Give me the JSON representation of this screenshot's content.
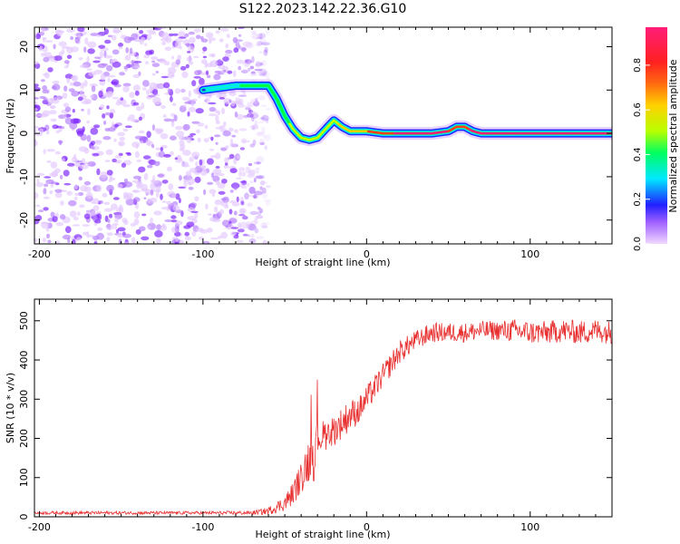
{
  "title": "S122.2023.142.22.36.G10",
  "colors": {
    "snr_line": "#e83030",
    "spectro_noise": "#7a1cff",
    "colormap": [
      "#f0d8ff",
      "#7a1cff",
      "#1a2bff",
      "#00e8ff",
      "#00ff40",
      "#c8ff00",
      "#ffd000",
      "#ff4020",
      "#ff1e78"
    ]
  },
  "chart_data": [
    {
      "type": "heatmap",
      "title": "S122.2023.142.22.36.G10",
      "xlabel": "Height of straight line (km)",
      "ylabel": "Frequency (Hz)",
      "xlim": [
        -203,
        150
      ],
      "ylim": [
        -25.5,
        24.5
      ],
      "xticks": [
        -200,
        -100,
        0,
        100
      ],
      "yticks": [
        -20,
        -10,
        0,
        10,
        20
      ],
      "colorbar": {
        "label": "Normalized spectral amplitude",
        "range": [
          0.0,
          0.97
        ],
        "ticks": [
          0.0,
          0.2,
          0.4,
          0.6,
          0.8
        ]
      },
      "noise_region_x": [
        -203,
        -60
      ],
      "ridge": {
        "x": [
          -100,
          -90,
          -80,
          -70,
          -60,
          -55,
          -50,
          -45,
          -40,
          -35,
          -30,
          -25,
          -20,
          -15,
          -10,
          -5,
          0,
          10,
          20,
          30,
          40,
          50,
          55,
          60,
          65,
          70,
          80,
          90,
          100,
          120,
          150
        ],
        "freq": [
          10,
          10.5,
          11,
          11,
          11,
          8,
          4,
          1,
          -1,
          -1.5,
          -1,
          1,
          3,
          1.5,
          0.5,
          0.5,
          0.5,
          0,
          0,
          0,
          0,
          0.5,
          1.5,
          1.5,
          0.5,
          0,
          0,
          0,
          0,
          0,
          0
        ],
        "amplitude": [
          0.25,
          0.3,
          0.35,
          0.45,
          0.5,
          0.4,
          0.45,
          0.55,
          0.6,
          0.6,
          0.55,
          0.6,
          0.6,
          0.65,
          0.7,
          0.7,
          0.75,
          0.85,
          0.9,
          0.9,
          0.9,
          0.9,
          0.8,
          0.85,
          0.9,
          0.9,
          0.9,
          0.9,
          0.92,
          0.92,
          0.9
        ]
      }
    },
    {
      "type": "line",
      "xlabel": "Height of straight line (km)",
      "ylabel": "SNR (10 * v/v)",
      "xlim": [
        -203,
        150
      ],
      "ylim": [
        0,
        555
      ],
      "xticks": [
        -200,
        -100,
        0,
        100
      ],
      "yticks": [
        0,
        100,
        200,
        300,
        400,
        500
      ],
      "series": [
        {
          "x": [
            -203,
            -150,
            -100,
            -70,
            -60,
            -50,
            -45,
            -40,
            -35,
            -32,
            -30,
            -25,
            -20,
            -15,
            -10,
            -5,
            0,
            10,
            20,
            30,
            40,
            50,
            60,
            70,
            80,
            90,
            100,
            110,
            120,
            130,
            140,
            150
          ],
          "y": [
            10,
            10,
            10,
            10,
            15,
            35,
            60,
            100,
            150,
            170,
            200,
            210,
            220,
            240,
            260,
            270,
            300,
            360,
            420,
            450,
            470,
            470,
            470,
            475,
            475,
            475,
            470,
            470,
            475,
            470,
            475,
            470
          ],
          "noise": [
            4,
            4,
            4,
            5,
            10,
            20,
            30,
            40,
            60,
            80,
            40,
            40,
            40,
            40,
            40,
            35,
            35,
            30,
            30,
            25,
            25,
            25,
            25,
            25,
            25,
            30,
            30,
            30,
            30,
            30,
            30,
            30
          ]
        }
      ]
    }
  ]
}
